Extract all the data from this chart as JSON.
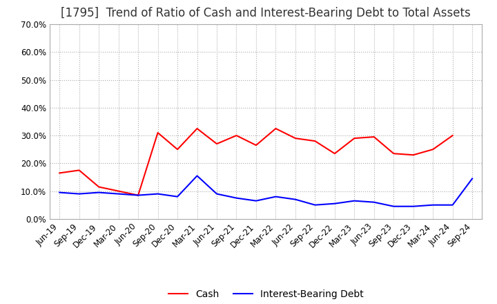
{
  "title": "[1795]  Trend of Ratio of Cash and Interest-Bearing Debt to Total Assets",
  "x_labels": [
    "Jun-19",
    "Sep-19",
    "Dec-19",
    "Mar-20",
    "Jun-20",
    "Sep-20",
    "Dec-20",
    "Mar-21",
    "Jun-21",
    "Sep-21",
    "Dec-21",
    "Mar-22",
    "Jun-22",
    "Sep-22",
    "Dec-22",
    "Mar-23",
    "Jun-23",
    "Sep-23",
    "Dec-23",
    "Mar-24",
    "Jun-24",
    "Sep-24"
  ],
  "cash": [
    0.165,
    0.175,
    0.115,
    0.1,
    0.085,
    0.31,
    0.25,
    0.325,
    0.27,
    0.3,
    0.265,
    0.325,
    0.29,
    0.28,
    0.235,
    0.29,
    0.295,
    0.235,
    0.23,
    0.25,
    0.3,
    null
  ],
  "ibd": [
    0.095,
    0.09,
    0.095,
    0.09,
    0.085,
    0.09,
    0.08,
    0.155,
    0.09,
    0.075,
    0.065,
    0.08,
    0.07,
    0.05,
    0.055,
    0.065,
    0.06,
    0.045,
    0.045,
    0.05,
    0.05,
    0.145
  ],
  "cash_color": "#ff0000",
  "ibd_color": "#0000ff",
  "background_color": "#ffffff",
  "grid_color": "#aaaaaa",
  "border_color": "#aaaaaa",
  "ylim": [
    0.0,
    0.7
  ],
  "yticks": [
    0.0,
    0.1,
    0.2,
    0.3,
    0.4,
    0.5,
    0.6,
    0.7
  ],
  "legend_cash": "Cash",
  "legend_ibd": "Interest-Bearing Debt",
  "title_fontsize": 12,
  "tick_fontsize": 8.5,
  "legend_fontsize": 10
}
